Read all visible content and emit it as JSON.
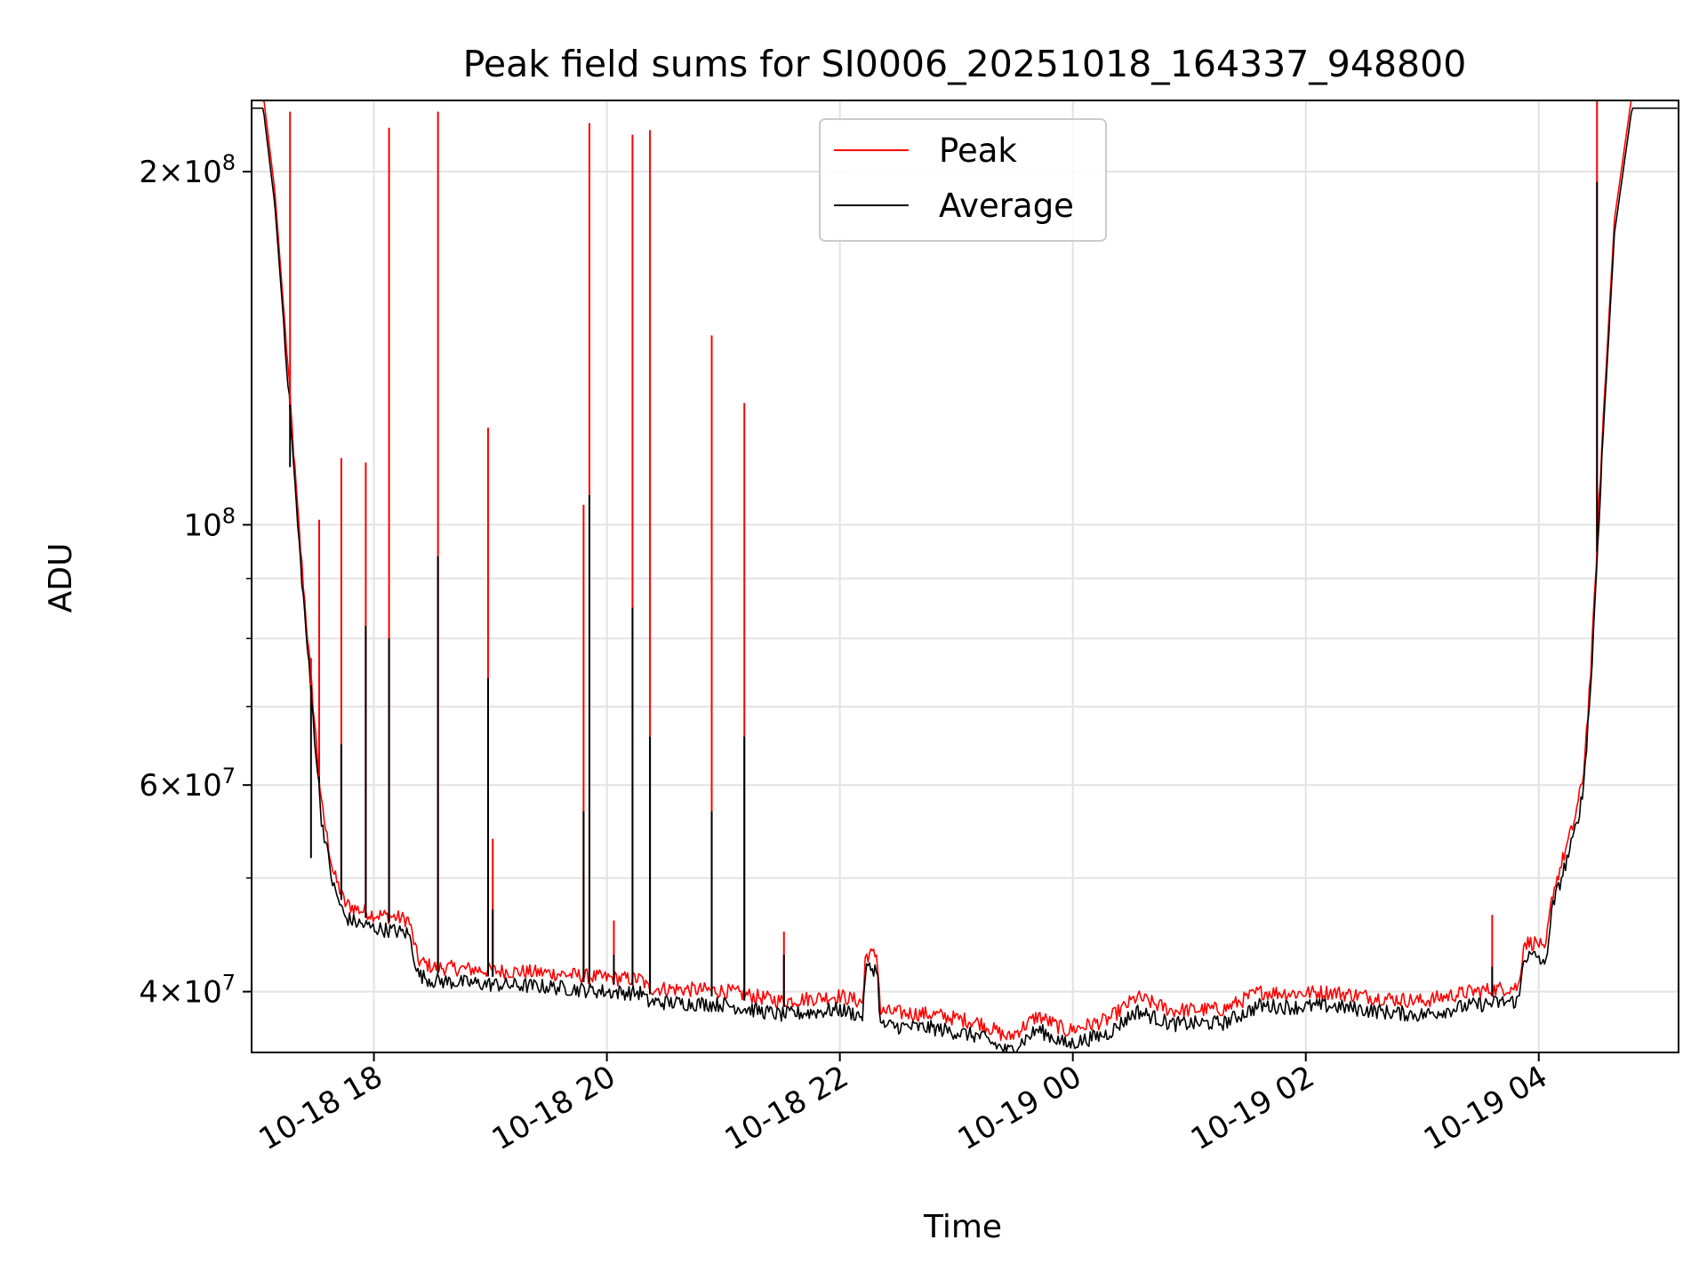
{
  "chart_data": {
    "type": "line",
    "title": "Peak field sums for SI0006_20251018_164337_948800",
    "xlabel": "Time",
    "ylabel": "ADU",
    "x_unit": "hours since 10-18 16:00",
    "xlim": [
      0.95,
      13.2
    ],
    "ylim": [
      35500000,
      230000000
    ],
    "yscale": "log",
    "grid": true,
    "legend_location": "top-center",
    "x_ticks": [
      {
        "value": 2,
        "label": "10-18 18"
      },
      {
        "value": 4,
        "label": "10-18 20"
      },
      {
        "value": 6,
        "label": "10-18 22"
      },
      {
        "value": 8,
        "label": "10-19 00"
      },
      {
        "value": 10,
        "label": "10-19 02"
      },
      {
        "value": 12,
        "label": "10-19 04"
      }
    ],
    "y_major_ticks": [
      {
        "value": 40000000,
        "mantissa": "4",
        "base": "10",
        "exp": "7"
      },
      {
        "value": 60000000,
        "mantissa": "6",
        "base": "10",
        "exp": "7"
      },
      {
        "value": 100000000,
        "mantissa": "",
        "base": "10",
        "exp": "8"
      },
      {
        "value": 200000000,
        "mantissa": "2",
        "base": "10",
        "exp": "8"
      }
    ],
    "y_minor_ticks": [
      50000000,
      70000000,
      80000000,
      90000000
    ],
    "baseline": [
      [
        0.95,
        230000000
      ],
      [
        1.05,
        230000000
      ],
      [
        1.15,
        190000000
      ],
      [
        1.25,
        140000000
      ],
      [
        1.35,
        100000000
      ],
      [
        1.45,
        75000000
      ],
      [
        1.55,
        57000000
      ],
      [
        1.65,
        50000000
      ],
      [
        1.75,
        47000000
      ],
      [
        1.85,
        46500000
      ],
      [
        2.0,
        46000000
      ],
      [
        2.15,
        45800000
      ],
      [
        2.3,
        45500000
      ],
      [
        2.38,
        42000000
      ],
      [
        2.5,
        41500000
      ],
      [
        3.0,
        41200000
      ],
      [
        3.5,
        41000000
      ],
      [
        4.0,
        40600000
      ],
      [
        4.3,
        40500000
      ],
      [
        4.35,
        39800000
      ],
      [
        5.0,
        39600000
      ],
      [
        5.5,
        38800000
      ],
      [
        6.0,
        39200000
      ],
      [
        6.2,
        38700000
      ],
      [
        6.22,
        42500000
      ],
      [
        6.32,
        42500000
      ],
      [
        6.35,
        38000000
      ],
      [
        6.8,
        37800000
      ],
      [
        7.2,
        37200000
      ],
      [
        7.45,
        36100000
      ],
      [
        7.7,
        37700000
      ],
      [
        7.95,
        36600000
      ],
      [
        8.3,
        37400000
      ],
      [
        8.55,
        39100000
      ],
      [
        8.85,
        38100000
      ],
      [
        9.3,
        38200000
      ],
      [
        9.6,
        39500000
      ],
      [
        9.9,
        39400000
      ],
      [
        10.2,
        39500000
      ],
      [
        10.7,
        39000000
      ],
      [
        11.0,
        38800000
      ],
      [
        11.4,
        39500000
      ],
      [
        11.83,
        39900000
      ],
      [
        11.87,
        43500000
      ],
      [
        12.0,
        43500000
      ],
      [
        12.05,
        42500000
      ],
      [
        12.12,
        48000000
      ],
      [
        12.2,
        51000000
      ],
      [
        12.3,
        55000000
      ],
      [
        12.38,
        60000000
      ],
      [
        12.45,
        75000000
      ],
      [
        12.55,
        120000000
      ],
      [
        12.65,
        180000000
      ],
      [
        12.8,
        230000000
      ],
      [
        13.2,
        230000000
      ]
    ],
    "series": [
      {
        "name": "Peak",
        "color": "#ff0000",
        "spikes": [
          [
            1.28,
            225000000
          ],
          [
            1.46,
            77000000
          ],
          [
            1.53,
            101000000
          ],
          [
            1.72,
            114000000
          ],
          [
            1.93,
            113000000
          ],
          [
            2.13,
            218000000
          ],
          [
            2.55,
            225000000
          ],
          [
            2.98,
            121000000
          ],
          [
            3.02,
            54000000
          ],
          [
            3.8,
            104000000
          ],
          [
            3.85,
            220000000
          ],
          [
            4.06,
            46000000
          ],
          [
            4.22,
            215000000
          ],
          [
            4.37,
            217000000
          ],
          [
            4.9,
            145000000
          ],
          [
            5.18,
            127000000
          ],
          [
            5.52,
            45000000
          ],
          [
            11.6,
            46500000
          ],
          [
            12.5,
            230000000
          ]
        ]
      },
      {
        "name": "Average",
        "color": "#000000",
        "spikes": [
          [
            1.28,
            112000000
          ],
          [
            1.46,
            52000000
          ],
          [
            1.53,
            61000000
          ],
          [
            1.72,
            65000000
          ],
          [
            1.93,
            82000000
          ],
          [
            2.13,
            80000000
          ],
          [
            2.55,
            94000000
          ],
          [
            2.98,
            74000000
          ],
          [
            3.02,
            47000000
          ],
          [
            3.8,
            57000000
          ],
          [
            3.85,
            106000000
          ],
          [
            4.06,
            43000000
          ],
          [
            4.22,
            85000000
          ],
          [
            4.37,
            66000000
          ],
          [
            4.9,
            57000000
          ],
          [
            5.18,
            66000000
          ],
          [
            5.52,
            43000000
          ],
          [
            11.6,
            42000000
          ],
          [
            12.5,
            196000000
          ]
        ]
      }
    ]
  }
}
